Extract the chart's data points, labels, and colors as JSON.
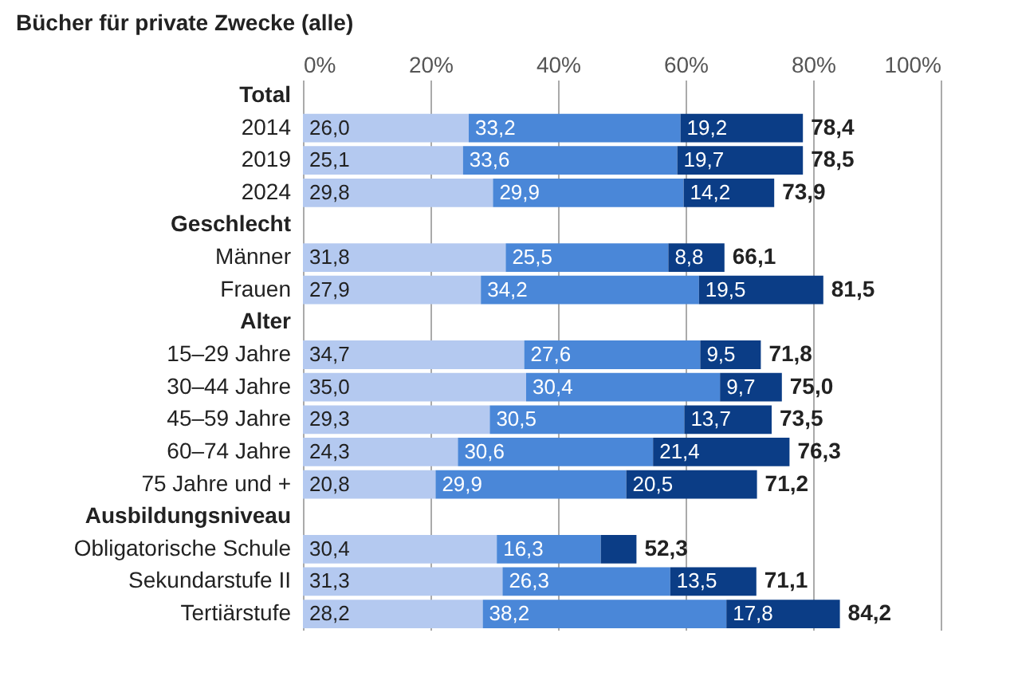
{
  "chart_data": {
    "type": "bar",
    "orientation": "horizontal",
    "stacked": true,
    "title": "Bücher für private Zwecke (alle)",
    "categories": [
      "Total",
      "2014",
      "2019",
      "2024",
      "Geschlecht",
      "Männer",
      "Frauen",
      "Alter",
      "15–29 Jahre",
      "30–44 Jahre",
      "45–59 Jahre",
      "60–74 Jahre",
      "75 Jahre und +",
      "Ausbildungsniveau",
      "Obligatorische Schule",
      "Sekundarstufe II",
      "Tertiärstufe"
    ],
    "series": [
      {
        "color": "#b4c9f0",
        "values": [
          null,
          26.0,
          25.1,
          29.8,
          null,
          31.8,
          27.9,
          null,
          34.7,
          35.0,
          29.3,
          24.3,
          20.8,
          null,
          30.4,
          31.3,
          28.2
        ],
        "value_labels": [
          null,
          "26,0",
          "25,1",
          "29,8",
          null,
          "31,8",
          "27,9",
          null,
          "34,7",
          "35,0",
          "29,3",
          "24,3",
          "20,8",
          null,
          "30,4",
          "31,3",
          "28,2"
        ]
      },
      {
        "color": "#4a87d8",
        "values": [
          null,
          33.2,
          33.6,
          29.9,
          null,
          25.5,
          34.2,
          null,
          27.6,
          30.4,
          30.5,
          30.6,
          29.9,
          null,
          16.3,
          26.3,
          38.2
        ],
        "value_labels": [
          null,
          "33,2",
          "33,6",
          "29,9",
          null,
          "25,5",
          "34,2",
          null,
          "27,6",
          "30,4",
          "30,5",
          "30,6",
          "29,9",
          null,
          "16,3",
          "26,3",
          "38,2"
        ]
      },
      {
        "color": "#0b3d86",
        "values": [
          null,
          19.2,
          19.7,
          14.2,
          null,
          8.8,
          19.5,
          null,
          9.5,
          9.7,
          13.7,
          21.4,
          20.5,
          null,
          5.6,
          13.5,
          17.8
        ],
        "value_labels": [
          null,
          "19,2",
          "19,7",
          "14,2",
          null,
          "8,8",
          "19,5",
          null,
          "9,5",
          "9,7",
          "13,7",
          "21,4",
          "20,5",
          null,
          null,
          "13,5",
          "17,8"
        ]
      }
    ],
    "totals": [
      null,
      "78,4",
      "78,5",
      "73,9",
      null,
      "66,1",
      "81,5",
      null,
      "71,8",
      "75,0",
      "73,5",
      "76,3",
      "71,2",
      null,
      "52,3",
      "71,1",
      "84,2"
    ],
    "xlim": [
      0,
      100
    ],
    "xticks": [
      {
        "value": 0,
        "label": "0%"
      },
      {
        "value": 20,
        "label": "20%"
      },
      {
        "value": 40,
        "label": "40%"
      },
      {
        "value": 60,
        "label": "60%"
      },
      {
        "value": 80,
        "label": "80%"
      },
      {
        "value": 100,
        "label": "100%"
      }
    ],
    "grid": "x"
  }
}
